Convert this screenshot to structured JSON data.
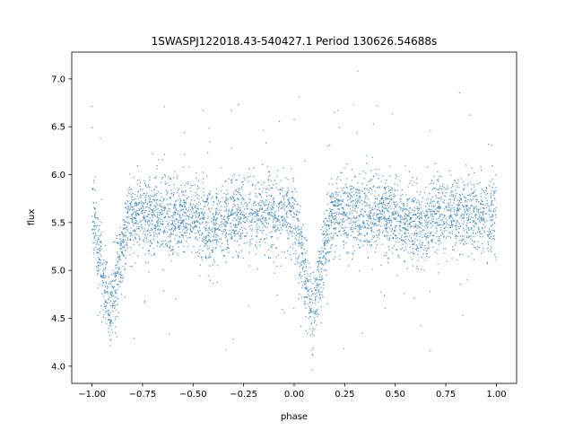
{
  "chart_data": {
    "type": "scatter",
    "title": "1SWASPJ122018.43-540427.1 Period 130626.54688s",
    "xlabel": "phase",
    "ylabel": "flux",
    "xlim": [
      -1.1,
      1.1
    ],
    "ylim": [
      3.82,
      7.28
    ],
    "x_ticks": [
      -1.0,
      -0.75,
      -0.5,
      -0.25,
      0.0,
      0.25,
      0.5,
      0.75,
      1.0
    ],
    "x_tick_labels": [
      "−1.00",
      "−0.75",
      "−0.50",
      "−0.25",
      "0.00",
      "0.25",
      "0.50",
      "0.75",
      "1.00"
    ],
    "y_ticks": [
      4.0,
      4.5,
      5.0,
      5.5,
      6.0,
      6.5,
      7.0
    ],
    "y_tick_labels": [
      "4.0",
      "4.5",
      "5.0",
      "5.5",
      "6.0",
      "6.5",
      "7.0"
    ],
    "grid": false,
    "point_color": "#1f77b4",
    "series": [
      {
        "baseline_flux": 5.58,
        "primary_eclipse": {
          "phase": [
            -0.91,
            0.09
          ],
          "min_flux": 4.55
        },
        "secondary_eclipse": {
          "phase": [
            -0.41,
            0.59
          ],
          "min_flux": 5.4
        },
        "scatter_sd": 0.2
      }
    ]
  }
}
